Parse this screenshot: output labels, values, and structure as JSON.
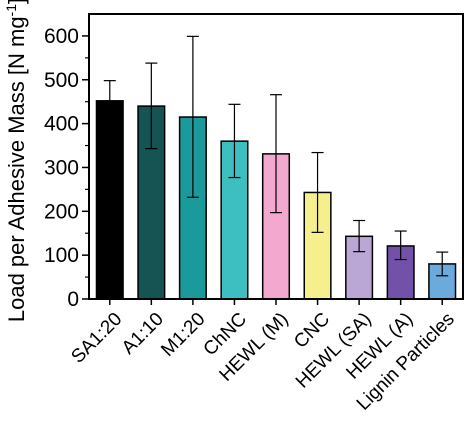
{
  "chart_data": {
    "type": "bar",
    "title": "",
    "xlabel": "",
    "ylabel": "Load per Adhesive Mass [N mg",
    "ylabel_superscript": "-1",
    "ylabel_close": "]",
    "ylim": [
      0,
      650
    ],
    "yticks": [
      0,
      100,
      200,
      300,
      400,
      500,
      600
    ],
    "grid": false,
    "legend": "none",
    "categories": [
      "SA1:20",
      "A1:10",
      "M1:20",
      "ChNC",
      "HEWL (M)",
      "CNC",
      "HEWL (SA)",
      "HEWL (A)",
      "Lignin Particles"
    ],
    "values": [
      452,
      440,
      415,
      360,
      331,
      243,
      143,
      121,
      80
    ],
    "error_low": [
      408,
      343,
      232,
      277,
      197,
      152,
      108,
      90,
      53
    ],
    "error_high": [
      498,
      538,
      599,
      444,
      466,
      334,
      179,
      155,
      107
    ],
    "colors": [
      "#000000",
      "#165454",
      "#1a9a9a",
      "#3dbfc2",
      "#f2a8cf",
      "#f5ef8d",
      "#bba7d6",
      "#7251a8",
      "#6caadc"
    ]
  }
}
